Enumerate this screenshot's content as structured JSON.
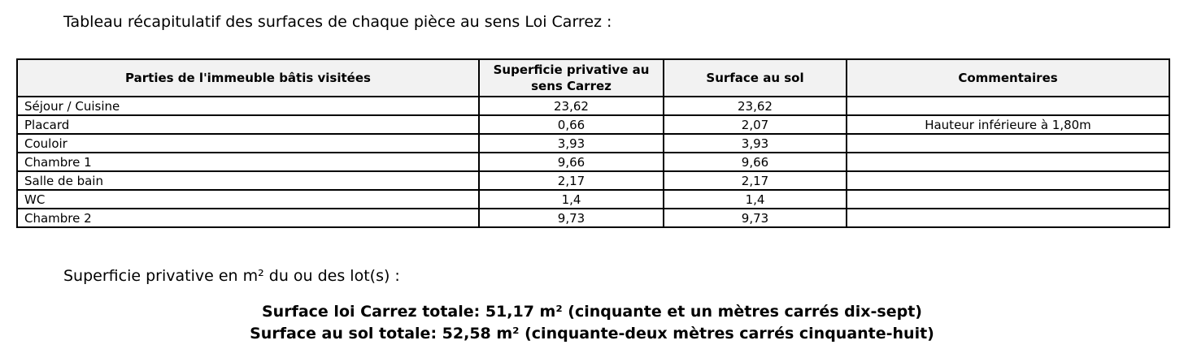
{
  "page": {
    "intro_text": "Tableau récapitulatif des surfaces de chaque pièce au sens Loi Carrez :",
    "lots_text": "Superficie privative en m² du ou des lot(s) :",
    "totals": {
      "carrez_total": "Surface loi Carrez totale: 51,17 m² (cinquante et un mètres carrés dix-sept)",
      "sol_total": "Surface au sol totale: 52,58 m² (cinquante-deux mètres carrés cinquante-huit)"
    }
  },
  "table": {
    "headers": [
      "Parties de l'immeuble bâtis visitées",
      "Superficie privative au sens Carrez",
      "Surface au sol",
      "Commentaires"
    ],
    "rows": [
      {
        "piece": "Séjour / Cuisine",
        "carrez": "23,62",
        "sol": "23,62",
        "commentaire": ""
      },
      {
        "piece": "Placard",
        "carrez": "0,66",
        "sol": "2,07",
        "commentaire": "Hauteur inférieure à 1,80m"
      },
      {
        "piece": "Couloir",
        "carrez": "3,93",
        "sol": "3,93",
        "commentaire": ""
      },
      {
        "piece": "Chambre 1",
        "carrez": "9,66",
        "sol": "9,66",
        "commentaire": ""
      },
      {
        "piece": "Salle de bain",
        "carrez": "2,17",
        "sol": "2,17",
        "commentaire": ""
      },
      {
        "piece": "WC",
        "carrez": "1,4",
        "sol": "1,4",
        "commentaire": ""
      },
      {
        "piece": "Chambre 2",
        "carrez": "9,73",
        "sol": "9,73",
        "commentaire": ""
      }
    ]
  },
  "colors": {
    "header_bg": "#f2f2f2",
    "border": "#000000",
    "text": "#000000",
    "page_bg": "#ffffff"
  }
}
